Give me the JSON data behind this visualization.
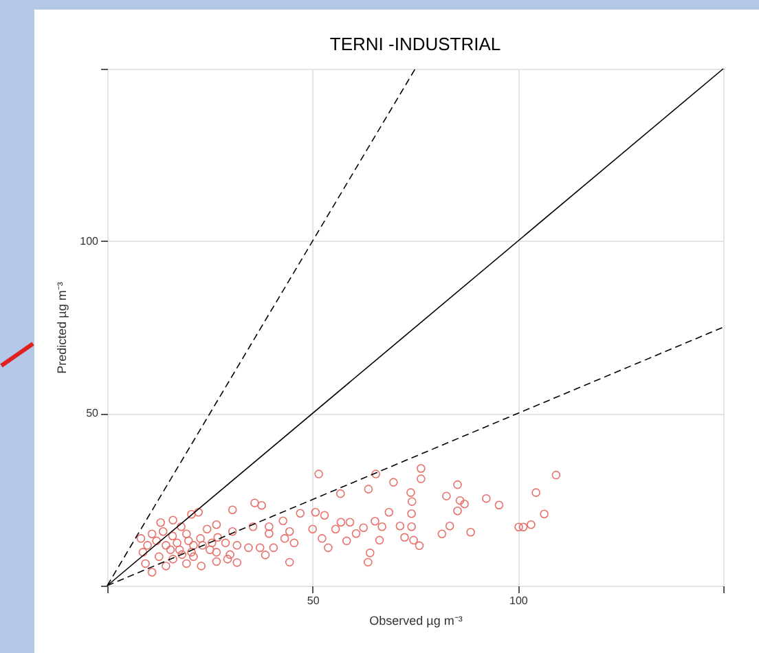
{
  "chart_data": {
    "type": "scatter",
    "title": "TERNI -INDUSTRIAL",
    "xlabel": "Observed µg m⁻³",
    "ylabel": "Predicted µg m⁻³",
    "xlim": [
      0,
      150
    ],
    "ylim": [
      0,
      150
    ],
    "xticks": [
      {
        "value": 0,
        "label": null
      },
      50,
      100,
      {
        "value": 150,
        "label": null
      }
    ],
    "yticks": [
      {
        "value": 0,
        "label": null
      },
      50,
      100,
      {
        "value": 150,
        "label": null
      }
    ],
    "grid": true,
    "series": [
      {
        "marker": "circle",
        "color": "#e8706a",
        "x": [
          51.5,
          65.4,
          76.4,
          76.4,
          69.7,
          63.6,
          56.8,
          73.9,
          74.2,
          35.9,
          37.6,
          30.5,
          20.5,
          22.2,
          16,
          13,
          50.7,
          47,
          52.9,
          42.8,
          68.6,
          56.9,
          59.1,
          62.4,
          65.2,
          66.9,
          71.3,
          74.1,
          74.1,
          35.5,
          39.4,
          39.4,
          44.4,
          50,
          52.3,
          55.6,
          60.6,
          58.3,
          53.8,
          45.5,
          43.2,
          44.4,
          40.5,
          37.2,
          34.4,
          38.5,
          64,
          63.5,
          66.3,
          72.4,
          74.6,
          76,
          26.6,
          26.9,
          30.5,
          31.6,
          29.9,
          31.6,
          26.6,
          22.9,
          19.3,
          14.3,
          10.9,
          9.3,
          8.2,
          8.7,
          9.8,
          12,
          14.3,
          15.9,
          17.6,
          19.3,
          21,
          22.7,
          24.3,
          25,
          12.6,
          16,
          18.2,
          21,
          25.5,
          28.8,
          10.9,
          13.6,
          15.4,
          17,
          20.5,
          23.2,
          26.6,
          29.3,
          19.8,
          18,
          85.3,
          82.6,
          85.9,
          87,
          92.3,
          95.4,
          85.3,
          83.4,
          81.5,
          88.5,
          100.2,
          101.3,
          103.2,
          106.4,
          104.4,
          109.3
        ],
        "values": [
          32.4,
          32.4,
          34,
          31,
          30,
          28,
          26.7,
          27,
          24.4,
          24,
          23.3,
          22,
          20.7,
          21.3,
          19,
          18.3,
          21.3,
          21,
          20.4,
          18.8,
          21.3,
          18.4,
          18.4,
          16.8,
          18.7,
          17.1,
          17.3,
          20.9,
          17.1,
          17.1,
          17.1,
          15.1,
          15.7,
          16.4,
          13.7,
          16.4,
          15.1,
          13,
          11,
          12.4,
          13.7,
          6.8,
          11,
          11,
          11,
          8.9,
          9.5,
          6.8,
          13.2,
          14,
          13.2,
          11.6,
          17.7,
          14,
          15.7,
          11.7,
          9,
          6.7,
          7,
          5.7,
          6.4,
          5.7,
          3.9,
          6.4,
          13.7,
          9.7,
          11.7,
          13,
          11.7,
          14.4,
          10.4,
          15,
          11.7,
          13.7,
          16.4,
          10.4,
          8.4,
          7.7,
          9,
          8.4,
          12.4,
          12.4,
          15,
          15.7,
          10.4,
          12.4,
          9.7,
          11.7,
          9.7,
          7.7,
          13,
          17.1,
          29.3,
          26,
          24.7,
          23.7,
          25.3,
          23.4,
          21.7,
          17.3,
          15,
          15.5,
          17,
          17,
          17.7,
          20.8,
          27,
          32.1
        ]
      },
      {
        "type": "line",
        "color": "#000000",
        "line_style": "solid",
        "x": [
          0,
          150
        ],
        "values": [
          0,
          150
        ]
      },
      {
        "type": "line",
        "color": "#000000",
        "line_style": "dashed",
        "x": [
          0,
          75
        ],
        "values": [
          0,
          150
        ]
      },
      {
        "type": "line",
        "color": "#000000",
        "line_style": "dashed",
        "x": [
          0,
          150
        ],
        "values": [
          0,
          75
        ]
      }
    ]
  }
}
